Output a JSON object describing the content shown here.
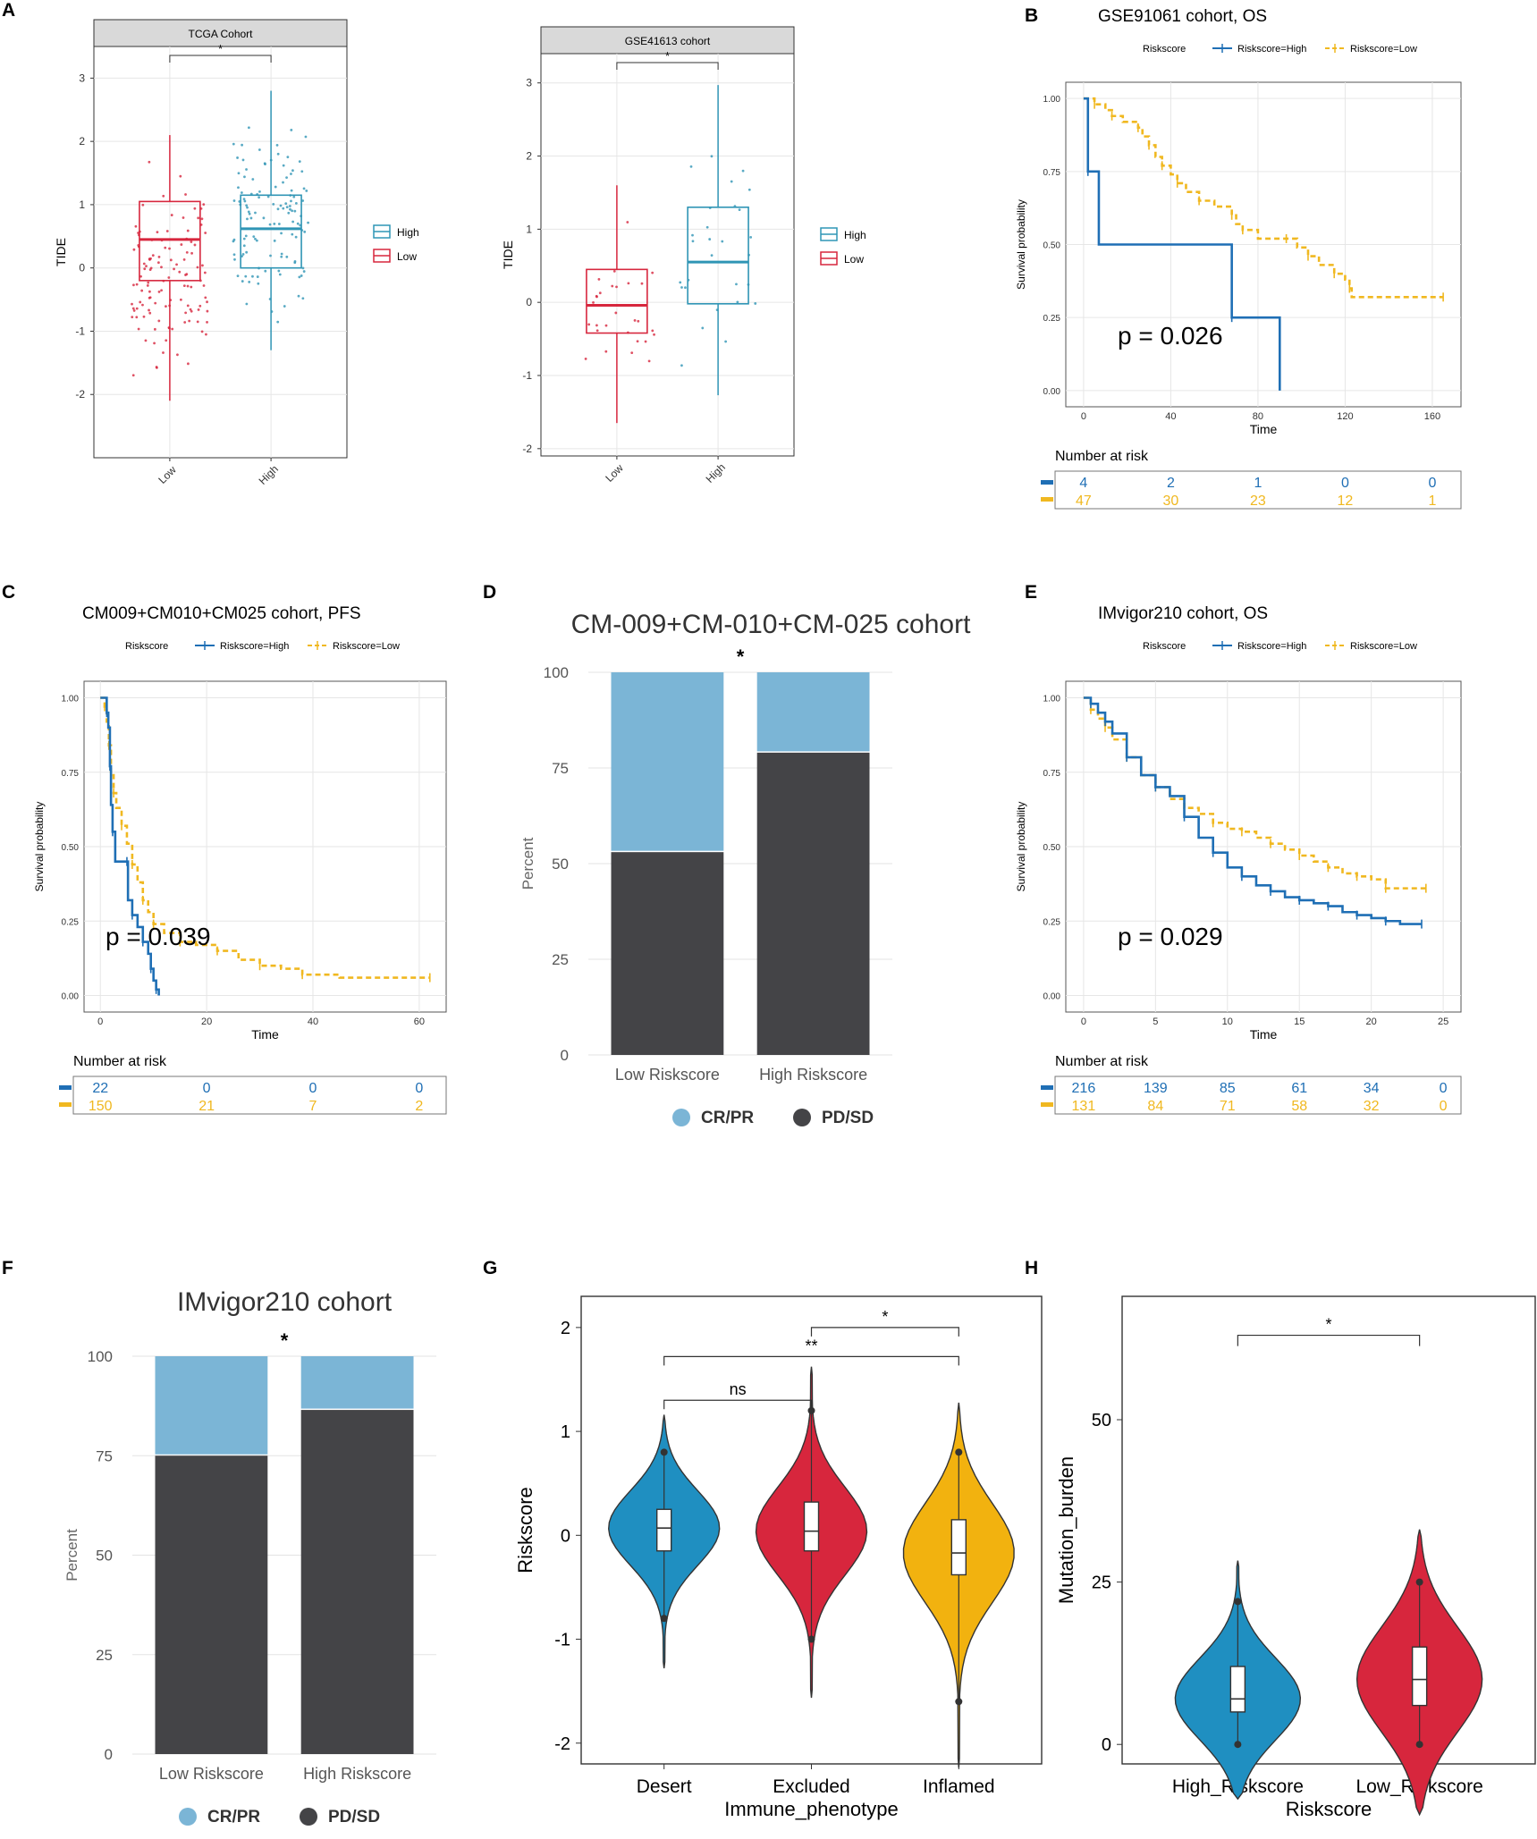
{
  "figure": {
    "panel_letters": [
      "A",
      "B",
      "C",
      "D",
      "E",
      "F",
      "G",
      "H"
    ],
    "colors": {
      "high_blue": "#2F95B5",
      "low_red": "#D7263D",
      "km_high": "#1F6FB5",
      "km_low": "#F0B820",
      "crpr": "#7BB5D6",
      "pdsd": "#444447",
      "violin_blue": "#1F8FC1",
      "violin_red": "#D7263D",
      "violin_yellow": "#F2B20F"
    }
  },
  "chart_data": [
    {
      "id": "A1",
      "type": "box",
      "title": "TCGA Cohort",
      "ylabel": "TIDE",
      "categories": [
        "Low",
        "High"
      ],
      "ylim": [
        -3,
        3.5
      ],
      "yticks": [
        -2,
        -1,
        0,
        1,
        2,
        3
      ],
      "sig": "*",
      "legend": [
        "High",
        "Low"
      ],
      "stats": [
        {
          "group": "Low",
          "min": -2.1,
          "q1": -0.2,
          "median": 0.45,
          "q3": 1.05,
          "max": 2.1
        },
        {
          "group": "High",
          "min": -1.3,
          "q1": 0.0,
          "median": 0.62,
          "q3": 1.15,
          "max": 2.8
        }
      ]
    },
    {
      "id": "A2",
      "type": "box",
      "title": "GSE41613 cohort",
      "ylabel": "TIDE",
      "categories": [
        "Low",
        "High"
      ],
      "ylim": [
        -2.1,
        3.4
      ],
      "yticks": [
        -2,
        -1,
        0,
        1,
        2,
        3
      ],
      "sig": "*",
      "legend": [
        "High",
        "Low"
      ],
      "stats": [
        {
          "group": "Low",
          "min": -1.65,
          "q1": -0.42,
          "median": -0.04,
          "q3": 0.45,
          "max": 1.6
        },
        {
          "group": "High",
          "min": -1.27,
          "q1": -0.02,
          "median": 0.55,
          "q3": 1.3,
          "max": 2.97
        }
      ]
    },
    {
      "id": "B",
      "type": "km",
      "title": "GSE91061 cohort, OS",
      "xlabel": "Time",
      "ylabel": "Survival probability",
      "legend_title": "Riskscore",
      "legend": [
        "Riskscore=High",
        "Riskscore=Low"
      ],
      "xlim": [
        0,
        165
      ],
      "xticks": [
        0,
        40,
        80,
        120,
        160
      ],
      "yticks": [
        "0.00",
        "0.25",
        "0.50",
        "0.75",
        "1.00"
      ],
      "pvalue": "p = 0.026",
      "high": [
        [
          0,
          1
        ],
        [
          2,
          0.75
        ],
        [
          7,
          0.5
        ],
        [
          68,
          0.25
        ],
        [
          90,
          0
        ]
      ],
      "low": [
        [
          0,
          1
        ],
        [
          5,
          0.98
        ],
        [
          10,
          0.96
        ],
        [
          13,
          0.94
        ],
        [
          18,
          0.92
        ],
        [
          25,
          0.9
        ],
        [
          27,
          0.87
        ],
        [
          30,
          0.84
        ],
        [
          33,
          0.8
        ],
        [
          36,
          0.77
        ],
        [
          40,
          0.74
        ],
        [
          43,
          0.71
        ],
        [
          47,
          0.68
        ],
        [
          53,
          0.65
        ],
        [
          60,
          0.63
        ],
        [
          68,
          0.6
        ],
        [
          70,
          0.57
        ],
        [
          73,
          0.55
        ],
        [
          80,
          0.52
        ],
        [
          93,
          0.52
        ],
        [
          98,
          0.49
        ],
        [
          103,
          0.46
        ],
        [
          108,
          0.43
        ],
        [
          115,
          0.4
        ],
        [
          120,
          0.38
        ],
        [
          122,
          0.35
        ],
        [
          123,
          0.32
        ],
        [
          165,
          0.32
        ]
      ],
      "risk_title": "Number at risk",
      "risk": {
        "high": [
          "4",
          "2",
          "1",
          "0",
          "0"
        ],
        "low": [
          "47",
          "30",
          "23",
          "12",
          "1"
        ]
      }
    },
    {
      "id": "C",
      "type": "km",
      "title": "CM009+CM010+CM025 cohort, PFS",
      "xlabel": "Time",
      "ylabel": "Survival probability",
      "legend_title": "Riskscore",
      "legend": [
        "Riskscore=High",
        "Riskscore=Low"
      ],
      "xlim": [
        0,
        62
      ],
      "xticks": [
        0,
        20,
        40,
        60
      ],
      "yticks": [
        "0.00",
        "0.25",
        "0.50",
        "0.75",
        "1.00"
      ],
      "pvalue": "p = 0.039",
      "high": [
        [
          0,
          1
        ],
        [
          1.2,
          0.95
        ],
        [
          1.5,
          0.9
        ],
        [
          1.8,
          0.77
        ],
        [
          2,
          0.64
        ],
        [
          2.3,
          0.55
        ],
        [
          2.8,
          0.45
        ],
        [
          5,
          0.45
        ],
        [
          5.2,
          0.32
        ],
        [
          6,
          0.27
        ],
        [
          7,
          0.23
        ],
        [
          8,
          0.18
        ],
        [
          9,
          0.14
        ],
        [
          9.5,
          0.09
        ],
        [
          10,
          0.05
        ],
        [
          10.5,
          0.02
        ],
        [
          11,
          0
        ]
      ],
      "low": [
        [
          0,
          1
        ],
        [
          0.8,
          0.97
        ],
        [
          1.2,
          0.92
        ],
        [
          1.6,
          0.84
        ],
        [
          2,
          0.74
        ],
        [
          2.5,
          0.68
        ],
        [
          3,
          0.63
        ],
        [
          4,
          0.57
        ],
        [
          5,
          0.51
        ],
        [
          6,
          0.44
        ],
        [
          7,
          0.38
        ],
        [
          8,
          0.32
        ],
        [
          9,
          0.28
        ],
        [
          10,
          0.24
        ],
        [
          12,
          0.21
        ],
        [
          15,
          0.18
        ],
        [
          18,
          0.17
        ],
        [
          22,
          0.15
        ],
        [
          26,
          0.12
        ],
        [
          30,
          0.1
        ],
        [
          34,
          0.09
        ],
        [
          38,
          0.07
        ],
        [
          45,
          0.06
        ],
        [
          62,
          0.06
        ]
      ],
      "risk_title": "Number at risk",
      "risk": {
        "high": [
          "22",
          "0",
          "0",
          "0"
        ],
        "low": [
          "150",
          "21",
          "7",
          "2"
        ]
      }
    },
    {
      "id": "D",
      "type": "stacked_bar",
      "title": "CM-009+CM-010+CM-025 cohort",
      "ylabel": "Percent",
      "sig": "*",
      "categories": [
        "Low Riskscore",
        "High Riskscore"
      ],
      "yticks": [
        0,
        25,
        50,
        75,
        100
      ],
      "series": [
        {
          "name": "CR/PR",
          "values": [
            47,
            21
          ]
        },
        {
          "name": "PD/SD",
          "values": [
            53,
            79
          ]
        }
      ]
    },
    {
      "id": "E",
      "type": "km",
      "title": "IMvigor210 cohort, OS",
      "xlabel": "Time",
      "ylabel": "Survival probability",
      "legend_title": "Riskscore",
      "legend": [
        "Riskscore=High",
        "Riskscore=Low"
      ],
      "xlim": [
        0,
        25
      ],
      "xticks": [
        0,
        5,
        10,
        15,
        20,
        25
      ],
      "yticks": [
        "0.00",
        "0.25",
        "0.50",
        "0.75",
        "1.00"
      ],
      "pvalue": "p = 0.029",
      "high": [
        [
          0,
          1
        ],
        [
          0.5,
          0.98
        ],
        [
          1,
          0.95
        ],
        [
          1.5,
          0.92
        ],
        [
          2,
          0.88
        ],
        [
          3,
          0.8
        ],
        [
          4,
          0.74
        ],
        [
          5,
          0.7
        ],
        [
          6,
          0.67
        ],
        [
          7,
          0.6
        ],
        [
          8,
          0.53
        ],
        [
          9,
          0.48
        ],
        [
          10,
          0.43
        ],
        [
          11,
          0.4
        ],
        [
          12,
          0.37
        ],
        [
          13,
          0.35
        ],
        [
          14,
          0.33
        ],
        [
          15,
          0.32
        ],
        [
          16,
          0.31
        ],
        [
          17,
          0.3
        ],
        [
          18,
          0.28
        ],
        [
          19,
          0.27
        ],
        [
          20,
          0.26
        ],
        [
          21,
          0.25
        ],
        [
          22,
          0.24
        ],
        [
          23.5,
          0.24
        ]
      ],
      "low": [
        [
          0,
          1
        ],
        [
          0.5,
          0.96
        ],
        [
          1,
          0.93
        ],
        [
          1.5,
          0.9
        ],
        [
          2,
          0.86
        ],
        [
          3,
          0.8
        ],
        [
          4,
          0.74
        ],
        [
          5,
          0.7
        ],
        [
          6,
          0.66
        ],
        [
          7,
          0.63
        ],
        [
          8,
          0.61
        ],
        [
          9,
          0.58
        ],
        [
          10,
          0.56
        ],
        [
          11,
          0.55
        ],
        [
          12,
          0.53
        ],
        [
          13,
          0.51
        ],
        [
          14,
          0.49
        ],
        [
          15,
          0.47
        ],
        [
          16,
          0.45
        ],
        [
          17,
          0.43
        ],
        [
          18,
          0.41
        ],
        [
          19,
          0.4
        ],
        [
          20,
          0.39
        ],
        [
          21,
          0.36
        ],
        [
          22,
          0.36
        ],
        [
          23.8,
          0.36
        ]
      ],
      "risk_title": "Number at risk",
      "risk": {
        "high": [
          "216",
          "139",
          "85",
          "61",
          "34",
          "0"
        ],
        "low": [
          "131",
          "84",
          "71",
          "58",
          "32",
          "0"
        ]
      }
    },
    {
      "id": "F",
      "type": "stacked_bar",
      "title": "IMvigor210 cohort",
      "ylabel": "Percent",
      "sig": "*",
      "categories": [
        "Low Riskscore",
        "High Riskscore"
      ],
      "yticks": [
        0,
        25,
        50,
        75,
        100
      ],
      "series": [
        {
          "name": "CR/PR",
          "values": [
            25,
            13.5
          ]
        },
        {
          "name": "PD/SD",
          "values": [
            75,
            86.5
          ]
        }
      ]
    },
    {
      "id": "G",
      "type": "violin",
      "xlabel": "Immune_phenotype",
      "ylabel": "Riskscore",
      "categories": [
        "Desert",
        "Excluded",
        "Inflamed"
      ],
      "ylim": [
        -2.2,
        2.3
      ],
      "yticks": [
        -2,
        -1,
        0,
        1,
        2
      ],
      "sig": [
        "ns",
        "**",
        "*"
      ],
      "stats": [
        {
          "group": "Desert",
          "min": -0.8,
          "q1": -0.15,
          "median": 0.07,
          "q3": 0.25,
          "max": 0.8
        },
        {
          "group": "Excluded",
          "min": -1.0,
          "q1": -0.15,
          "median": 0.04,
          "q3": 0.32,
          "max": 1.2
        },
        {
          "group": "Inflamed",
          "min": -1.6,
          "q1": -0.38,
          "median": -0.17,
          "q3": 0.15,
          "max": 0.8
        }
      ]
    },
    {
      "id": "H",
      "type": "violin",
      "xlabel": "Riskscore",
      "ylabel": "Mutation_burden",
      "categories": [
        "High_Riskscore",
        "Low_Riskscore"
      ],
      "ylim": [
        -3,
        69
      ],
      "yticks": [
        0,
        25,
        50
      ],
      "sig": [
        "*"
      ],
      "stats": [
        {
          "group": "High_Riskscore",
          "min": 0,
          "q1": 5,
          "median": 7,
          "q3": 12,
          "max": 22
        },
        {
          "group": "Low_Riskscore",
          "min": 0,
          "q1": 6,
          "median": 10,
          "q3": 15,
          "max": 25
        }
      ]
    }
  ]
}
